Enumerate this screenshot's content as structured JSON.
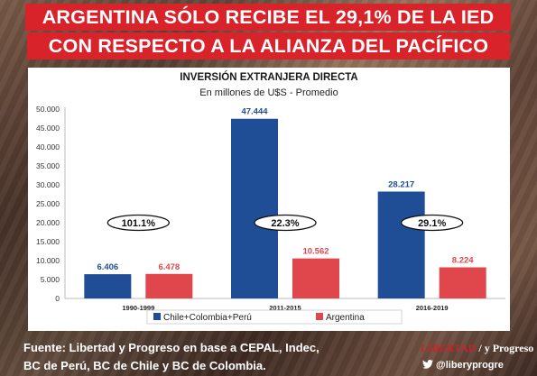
{
  "banner": {
    "line1": "ARGENTINA SÓLO RECIBE EL 29,1% DE LA IED",
    "line2": "CON RESPECTO A LA ALIANZA DEL PACÍFICO"
  },
  "chart_data": {
    "type": "bar",
    "title": "INVERSIÓN EXTRANJERA DIRECTA",
    "subtitle": "En millones de U$S - Promedio",
    "categories": [
      "1990-1999",
      "2011-2015",
      "2016-2019"
    ],
    "series": [
      {
        "name": "Chile+Colombia+Perú",
        "color": "#1f4e96",
        "values": [
          6406,
          47444,
          28217
        ],
        "labels": [
          "6.406",
          "47.444",
          "28.217"
        ]
      },
      {
        "name": "Argentina",
        "color": "#e0474c",
        "values": [
          6478,
          10562,
          8224
        ],
        "labels": [
          "6.478",
          "10.562",
          "8.224"
        ]
      }
    ],
    "ratios": [
      "101.1%",
      "22.3%",
      "29.1%"
    ],
    "ylim": [
      0,
      50000
    ],
    "yticks": [
      0,
      5000,
      10000,
      15000,
      20000,
      25000,
      30000,
      35000,
      40000,
      45000,
      50000
    ],
    "ytick_labels": [
      "0",
      "5.000",
      "10.000",
      "15.000",
      "20.000",
      "25.000",
      "30.000",
      "35.000",
      "40.000",
      "45.000",
      "50.000"
    ],
    "legend_position": "bottom"
  },
  "footer": {
    "line1": "Fuente: Libertad y Progreso en base a CEPAL, Indec,",
    "line2": "BC de Perú, BC de Chile y BC de Colombia."
  },
  "logo": {
    "part1": "LIBERTAD",
    "part2": "y Progreso"
  },
  "twitter": {
    "handle": "@liberyprogre"
  }
}
